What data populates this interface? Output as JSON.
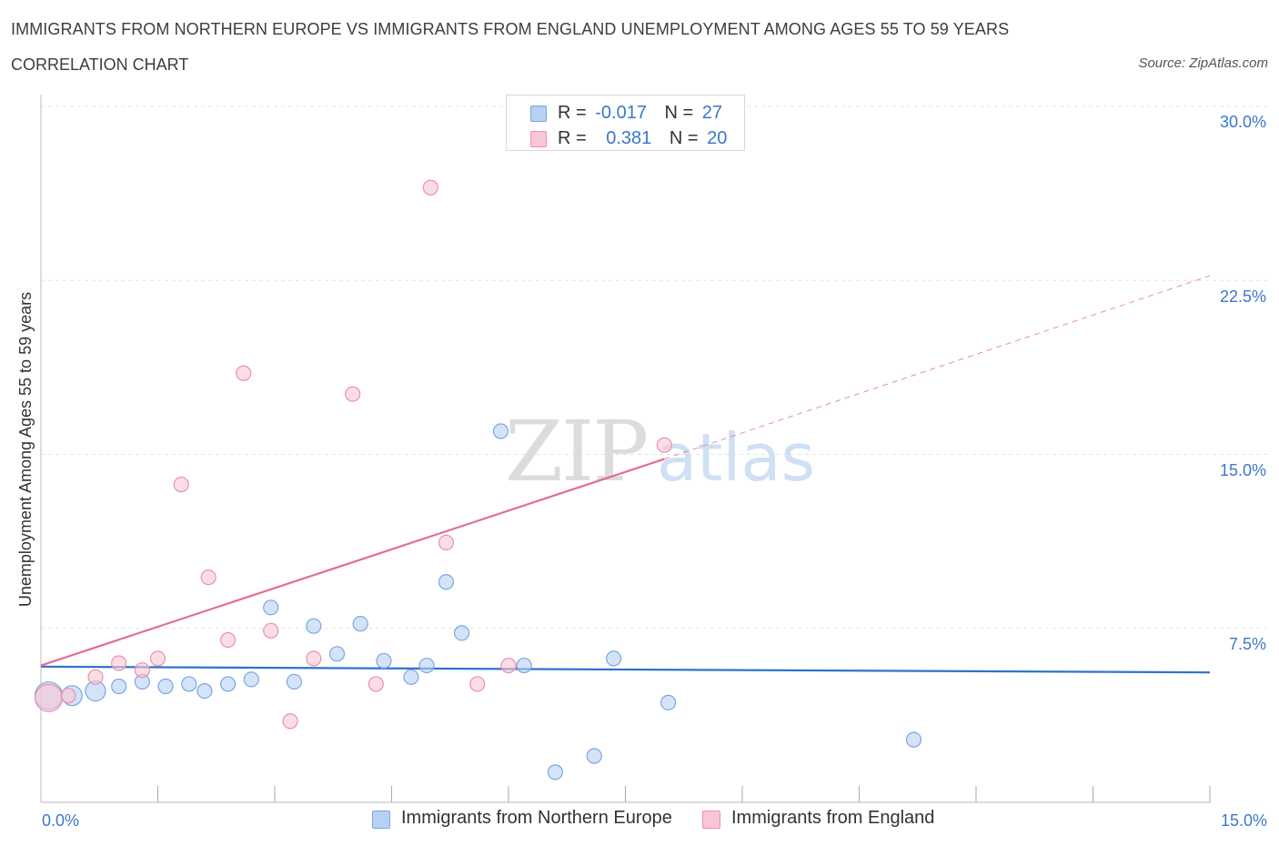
{
  "header": {
    "title": "IMMIGRANTS FROM NORTHERN EUROPE VS IMMIGRANTS FROM ENGLAND UNEMPLOYMENT AMONG AGES 55 TO 59 YEARS",
    "subtitle": "CORRELATION CHART",
    "source": "Source: ZipAtlas.com"
  },
  "legend": {
    "rows": [
      {
        "r_label": "R =",
        "r_value": "-0.017",
        "n_label": "N =",
        "n_value": "27"
      },
      {
        "r_label": "R =",
        "r_value": "0.381",
        "n_label": "N =",
        "n_value": "20"
      }
    ]
  },
  "watermark": {
    "zip": "ZIP",
    "atlas": "atlas"
  },
  "colors": {
    "blue_fill": "#b7d1f3",
    "blue_stroke": "#7aa7e0",
    "blue_line": "#2f73c9",
    "pink_fill": "#f9c6d5",
    "pink_stroke": "#eb90ae",
    "pink_line": "#e46d95",
    "axis_label": "#3b78c9",
    "grid": "#e3e3e3"
  },
  "chart_data": {
    "type": "scatter",
    "title": "IMMIGRANTS FROM NORTHERN EUROPE VS IMMIGRANTS FROM ENGLAND UNEMPLOYMENT AMONG AGES 55 TO 59 YEARS",
    "xlabel": "",
    "ylabel": "Unemployment Among Ages 55 to 59 years",
    "xlim": [
      0,
      15
    ],
    "ylim": [
      0,
      30
    ],
    "x_tick_labels": [
      "0.0%",
      "15.0%"
    ],
    "y_tick_labels": [
      "7.5%",
      "15.0%",
      "22.5%",
      "30.0%"
    ],
    "y_ticks": [
      7.5,
      15,
      22.5,
      30
    ],
    "x_minor_ticks": [
      1.5,
      3,
      4.5,
      6,
      7.5,
      9,
      10.5,
      12,
      13.5,
      15
    ],
    "grid": true,
    "legend_position": "top-center",
    "series": [
      {
        "name": "Immigrants from Northern Europe",
        "r": -0.017,
        "n": 27,
        "trend": {
          "x": [
            0,
            15
          ],
          "y": [
            5.85,
            5.6
          ],
          "dashed_extension": false
        },
        "points": [
          {
            "x": 0.1,
            "y": 4.6,
            "size": "large"
          },
          {
            "x": 0.4,
            "y": 4.6,
            "size": "medium"
          },
          {
            "x": 0.7,
            "y": 4.8,
            "size": "medium"
          },
          {
            "x": 1.0,
            "y": 5.0
          },
          {
            "x": 1.3,
            "y": 5.2
          },
          {
            "x": 1.6,
            "y": 5.0
          },
          {
            "x": 1.9,
            "y": 5.1
          },
          {
            "x": 2.1,
            "y": 4.8
          },
          {
            "x": 2.4,
            "y": 5.1
          },
          {
            "x": 2.7,
            "y": 5.3
          },
          {
            "x": 2.95,
            "y": 8.4
          },
          {
            "x": 3.25,
            "y": 5.2
          },
          {
            "x": 3.5,
            "y": 7.6
          },
          {
            "x": 3.8,
            "y": 6.4
          },
          {
            "x": 4.1,
            "y": 7.7
          },
          {
            "x": 4.4,
            "y": 6.1
          },
          {
            "x": 4.75,
            "y": 5.4
          },
          {
            "x": 4.95,
            "y": 5.9
          },
          {
            "x": 5.2,
            "y": 9.5
          },
          {
            "x": 5.4,
            "y": 7.3
          },
          {
            "x": 5.9,
            "y": 16.0
          },
          {
            "x": 6.2,
            "y": 5.9
          },
          {
            "x": 6.6,
            "y": 1.3
          },
          {
            "x": 7.1,
            "y": 2.0
          },
          {
            "x": 7.35,
            "y": 6.2
          },
          {
            "x": 8.05,
            "y": 4.3
          },
          {
            "x": 11.2,
            "y": 2.7
          }
        ]
      },
      {
        "name": "Immigrants from England",
        "r": 0.381,
        "n": 20,
        "trend": {
          "x": [
            0,
            8.0,
            15
          ],
          "y": [
            5.9,
            14.8,
            22.7
          ],
          "dashed_extension": true
        },
        "points": [
          {
            "x": 0.1,
            "y": 4.5,
            "size": "large"
          },
          {
            "x": 0.35,
            "y": 4.6
          },
          {
            "x": 0.7,
            "y": 5.4
          },
          {
            "x": 1.0,
            "y": 6.0
          },
          {
            "x": 1.3,
            "y": 5.7
          },
          {
            "x": 1.5,
            "y": 6.2
          },
          {
            "x": 1.8,
            "y": 13.7
          },
          {
            "x": 2.15,
            "y": 9.7
          },
          {
            "x": 2.4,
            "y": 7.0
          },
          {
            "x": 2.6,
            "y": 18.5
          },
          {
            "x": 2.95,
            "y": 7.4
          },
          {
            "x": 3.2,
            "y": 3.5
          },
          {
            "x": 3.5,
            "y": 6.2
          },
          {
            "x": 4.0,
            "y": 17.6
          },
          {
            "x": 4.3,
            "y": 5.1
          },
          {
            "x": 5.0,
            "y": 26.5
          },
          {
            "x": 5.2,
            "y": 11.2
          },
          {
            "x": 5.6,
            "y": 5.1
          },
          {
            "x": 6.0,
            "y": 5.9
          },
          {
            "x": 8.0,
            "y": 15.4
          }
        ]
      }
    ]
  },
  "bottom_legend": {
    "items": [
      {
        "label": "Immigrants from Northern Europe"
      },
      {
        "label": "Immigrants from England"
      }
    ]
  }
}
